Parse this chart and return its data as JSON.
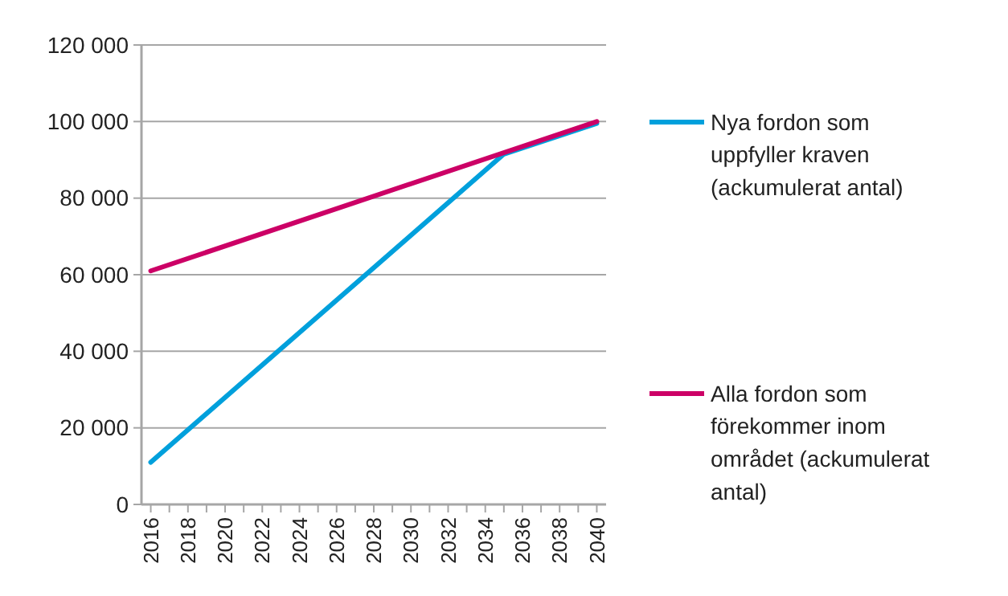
{
  "chart_data": {
    "type": "line",
    "xlim": [
      2015.5,
      2040.5
    ],
    "xticks": [
      2016,
      {
        "value": 2017,
        "label": null
      },
      2018,
      {
        "value": 2019,
        "label": null
      },
      2020,
      {
        "value": 2021,
        "label": null
      },
      2022,
      {
        "value": 2023,
        "label": null
      },
      2024,
      {
        "value": 2025,
        "label": null
      },
      2026,
      {
        "value": 2027,
        "label": null
      },
      2028,
      {
        "value": 2029,
        "label": null
      },
      2030,
      {
        "value": 2031,
        "label": null
      },
      2032,
      {
        "value": 2033,
        "label": null
      },
      2034,
      {
        "value": 2035,
        "label": null
      },
      2036,
      {
        "value": 2037,
        "label": null
      },
      2038,
      {
        "value": 2039,
        "label": null
      },
      2040
    ],
    "ylim": [
      0,
      120000
    ],
    "yticks": [
      {
        "value": 0,
        "label": "0"
      },
      {
        "value": 20000,
        "label": "20 000"
      },
      {
        "value": 40000,
        "label": "40 000"
      },
      {
        "value": 60000,
        "label": "60 000"
      },
      {
        "value": 80000,
        "label": "80 000"
      },
      {
        "value": 100000,
        "label": "100 000"
      },
      {
        "value": 120000,
        "label": "120 000"
      }
    ],
    "grid": "y",
    "legend": "right",
    "marker": "none",
    "line_style": "solid",
    "series": [
      {
        "name": "Nya fordon som uppfyller kraven (ackumulerat antal)",
        "color": "#00a0dc",
        "x": [
          2016,
          2035,
          2040
        ],
        "values": [
          11000,
          91500,
          99500
        ]
      },
      {
        "name": "Alla fordon som förekommer inom området (ackumulerat antal)",
        "color": "#cc0066",
        "x": [
          2016,
          2040
        ],
        "values": [
          61000,
          100000
        ]
      }
    ]
  }
}
